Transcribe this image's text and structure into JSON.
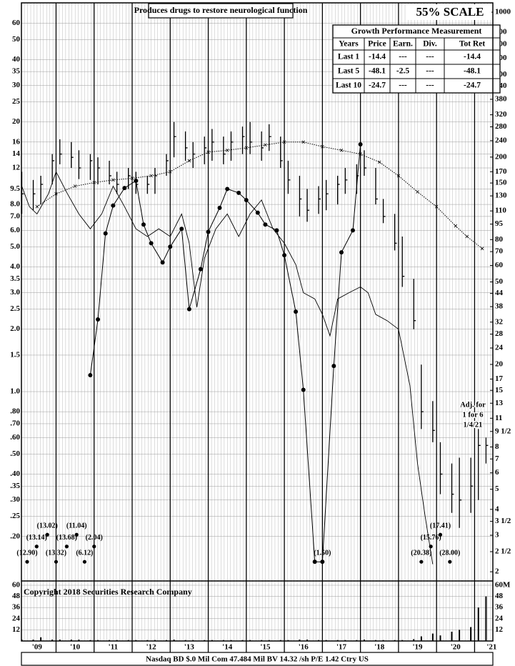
{
  "chart_data": {
    "type": "ohlc",
    "title": "Produces drugs to restore neurological function",
    "subtitle": "55% SCALE",
    "log": true,
    "xlim": [
      2009.09,
      2021.48
    ],
    "ylim": [
      0.123,
      75.1
    ],
    "y2lim": [
      1.82,
      1109
    ],
    "yticks": [
      60,
      50,
      40,
      35,
      30,
      25,
      20,
      16,
      14,
      12,
      9.5,
      {
        "value": 8,
        "label": "8.0"
      },
      {
        "value": 7,
        "label": "7.0"
      },
      {
        "value": 6,
        "label": "6.0"
      },
      {
        "value": 5,
        "label": "5.0"
      },
      {
        "value": 4,
        "label": "4.0"
      },
      3.5,
      {
        "value": 3,
        "label": "3.0"
      },
      2.5,
      {
        "value": 2,
        "label": "2.0"
      },
      1.5,
      {
        "value": 1,
        "label": "1.0"
      },
      {
        "value": 0.8,
        "label": ".80"
      },
      {
        "value": 0.7,
        "label": ".70"
      },
      {
        "value": 0.6,
        "label": ".60"
      },
      {
        "value": 0.5,
        "label": ".50"
      },
      {
        "value": 0.4,
        "label": ".40"
      },
      {
        "value": 0.35,
        "label": ".35"
      },
      {
        "value": 0.3,
        "label": ".30"
      },
      {
        "value": 0.25,
        "label": ".25"
      },
      {
        "value": 0.2,
        "label": ".20"
      }
    ],
    "y2ticks": [
      1000,
      800,
      700,
      600,
      500,
      440,
      380,
      320,
      280,
      240,
      200,
      170,
      150,
      130,
      110,
      95,
      80,
      70,
      60,
      50,
      44,
      38,
      32,
      28,
      24,
      20,
      17,
      15,
      13,
      11,
      {
        "value": 9.5,
        "label": "9 1/2"
      },
      8,
      7,
      6,
      5,
      4,
      {
        "value": 3.5,
        "label": "3 1/2"
      },
      3,
      {
        "value": 2.5,
        "label": "2 1/2"
      },
      2
    ],
    "xticks": [
      {
        "value": 2009.5,
        "label": "'09"
      },
      {
        "value": 2010.5,
        "label": "'10"
      },
      {
        "value": 2011.5,
        "label": "'11"
      },
      {
        "value": 2012.5,
        "label": "'12"
      },
      {
        "value": 2013.5,
        "label": "'13"
      },
      {
        "value": 2014.5,
        "label": "'14"
      },
      {
        "value": 2015.5,
        "label": "'15"
      },
      {
        "value": 2016.5,
        "label": "'16"
      },
      {
        "value": 2017.5,
        "label": "'17"
      },
      {
        "value": 2018.5,
        "label": "'18"
      },
      {
        "value": 2019.5,
        "label": "'19"
      },
      {
        "value": 2020.5,
        "label": "'20"
      },
      {
        "value": 2021.45,
        "label": "'21"
      }
    ],
    "year_lines": [
      2010,
      2011,
      2012,
      2013,
      2014,
      2015,
      2016,
      2017,
      2018,
      2019,
      2020,
      2021
    ],
    "x": [
      2009.1,
      2009.4,
      2009.6,
      2009.9,
      2010.1,
      2010.4,
      2010.6,
      2010.9,
      2011.1,
      2011.4,
      2011.6,
      2011.9,
      2012.1,
      2012.4,
      2012.6,
      2012.9,
      2013.1,
      2013.4,
      2013.6,
      2013.9,
      2014.1,
      2014.4,
      2014.6,
      2014.9,
      2015.1,
      2015.4,
      2015.6,
      2015.9,
      2016.1,
      2016.4,
      2016.6,
      2016.9,
      2017.1,
      2017.4,
      2017.6,
      2017.9,
      2018.1,
      2018.4,
      2018.6,
      2018.9,
      2019.1,
      2019.4,
      2019.6,
      2019.9,
      2020.1,
      2020.4,
      2020.6,
      2020.9,
      2021.1,
      2021.3
    ],
    "high": [
      11.5,
      10.5,
      11,
      14,
      16.5,
      16,
      14.6,
      14,
      13.5,
      13,
      11.5,
      12,
      11.5,
      11,
      12,
      14,
      20,
      18,
      16,
      17,
      18.5,
      17,
      18,
      19,
      20,
      18,
      19.5,
      17,
      13,
      11,
      9.5,
      9.8,
      10.5,
      11,
      12,
      12.5,
      14.6,
      12,
      8.5,
      7.2,
      5.6,
      3.5,
      1.35,
      0.9,
      0.57,
      0.45,
      0.48,
      0.48,
      0.66,
      0.6
    ],
    "low": [
      7.2,
      7.5,
      8,
      10,
      12.5,
      12,
      10.6,
      10.5,
      10,
      10,
      9,
      9.5,
      9,
      9,
      9,
      11,
      13.5,
      13,
      12,
      12.5,
      13,
      12.5,
      13,
      14,
      14,
      13,
      14.5,
      12,
      9,
      7,
      6.6,
      7.2,
      7.5,
      8,
      9,
      9,
      11,
      8,
      6.5,
      4.8,
      3.2,
      2.0,
      0.66,
      0.57,
      0.32,
      0.26,
      0.22,
      0.26,
      0.3,
      0.45
    ],
    "close": [
      9,
      9,
      10,
      13,
      14,
      13.5,
      12,
      13,
      12,
      11,
      10,
      11,
      10,
      10,
      11,
      13,
      17,
      15,
      14,
      15,
      16,
      14,
      16,
      17,
      16,
      15,
      17,
      13,
      10.5,
      8.5,
      7.5,
      8.5,
      9,
      10,
      10.5,
      11,
      12,
      8.5,
      7,
      5.2,
      3.6,
      2.2,
      0.8,
      0.65,
      0.4,
      0.32,
      0.3,
      0.35,
      0.55,
      0.55
    ],
    "moving_average": {
      "x": [
        2009.5,
        2010,
        2010.5,
        2011,
        2011.5,
        2012,
        2012.5,
        2013,
        2013.5,
        2014,
        2014.5,
        2015,
        2015.5,
        2016,
        2016.5,
        2017,
        2017.5,
        2018,
        2018.5,
        2019,
        2019.5,
        2020,
        2020.5,
        2020.8,
        2021.2
      ],
      "values": [
        7.8,
        9.0,
        9.8,
        10.2,
        10.5,
        10.7,
        11.0,
        11.5,
        13,
        14.3,
        14.6,
        15,
        15.5,
        16,
        16,
        15.2,
        14.6,
        14,
        12.8,
        11,
        9.2,
        7.8,
        6.3,
        5.6,
        4.9
      ]
    },
    "relative_strength": {
      "x": [
        2009.1,
        2009.3,
        2009.5,
        2009.8,
        2010.0,
        2010.3,
        2010.6,
        2010.9,
        2011.2,
        2011.5,
        2011.8,
        2012.1,
        2012.4,
        2012.7,
        2013.0,
        2013.3,
        2013.5,
        2013.7,
        2013.9,
        2014.2,
        2014.5,
        2014.8,
        2015.1,
        2015.4,
        2015.7,
        2016.0,
        2016.3,
        2016.5,
        2016.8,
        2017.0,
        2017.2,
        2017.4,
        2017.7,
        2018.0,
        2018.2,
        2018.4,
        2018.7,
        2019.0,
        2019.3,
        2019.5,
        2019.7,
        2019.9
      ],
      "values": [
        9.8,
        7.8,
        7.2,
        9,
        11.5,
        9,
        7.2,
        6.1,
        7.2,
        9.8,
        7.8,
        6.1,
        5.6,
        6.1,
        5.6,
        7.2,
        5.2,
        2.55,
        4.4,
        6.1,
        7.2,
        5.6,
        7.2,
        8.4,
        6.1,
        5.2,
        4.1,
        3.0,
        2.8,
        2.36,
        1.86,
        2.8,
        3.0,
        3.2,
        3.0,
        2.36,
        2.2,
        2.0,
        1.07,
        0.45,
        0.25,
        0.147
      ]
    },
    "earnings": {
      "x": [
        2010.9,
        2011.1,
        2011.3,
        2011.5,
        2011.8,
        2012.1,
        2012.3,
        2012.5,
        2012.8,
        2013.0,
        2013.3,
        2013.5,
        2013.8,
        2014.0,
        2014.3,
        2014.5,
        2014.8,
        2015.0,
        2015.3,
        2015.5,
        2015.8,
        2016.0,
        2016.3,
        2016.5,
        2016.8,
        2017.0,
        2017.3,
        2017.5,
        2017.8,
        2018.0
      ],
      "values": [
        1.2,
        2.23,
        5.8,
        7.9,
        9.6,
        10.4,
        6.4,
        5.2,
        4.2,
        5.0,
        6.1,
        2.5,
        3.9,
        5.9,
        7.7,
        9.5,
        9.1,
        8.4,
        7.3,
        6.4,
        6.0,
        4.55,
        2.43,
        1.02,
        0.151,
        0.151,
        1.33,
        4.7,
        6.0,
        15.6
      ]
    },
    "deficits": [
      {
        "x": 2009.24,
        "y": 0.151,
        "label": "(12.90)"
      },
      {
        "x": 2009.49,
        "y": 0.179,
        "label": "(13.14)"
      },
      {
        "x": 2009.77,
        "y": 0.204,
        "label": "(13.02)"
      },
      {
        "x": 2010.0,
        "y": 0.151,
        "label": "(13.32)"
      },
      {
        "x": 2010.28,
        "y": 0.179,
        "label": "(13.68)"
      },
      {
        "x": 2010.54,
        "y": 0.204,
        "label": "(11.04)"
      },
      {
        "x": 2010.75,
        "y": 0.151,
        "label": "(6.12)"
      },
      {
        "x": 2011.0,
        "y": 0.179,
        "label": "(2.04)"
      },
      {
        "x": 2017.0,
        "y": 0.151,
        "label": "(1.50)"
      },
      {
        "x": 2019.6,
        "y": 0.151,
        "label": "(20.38)"
      },
      {
        "x": 2019.85,
        "y": 0.179,
        "label": "(15.76)"
      },
      {
        "x": 2020.1,
        "y": 0.204,
        "label": "(17.41)"
      },
      {
        "x": 2020.35,
        "y": 0.151,
        "label": "(28.00)"
      }
    ],
    "note": [
      "Adj. for",
      "1 for 6",
      "1/4/21"
    ],
    "volume": {
      "ylim": [
        0,
        64.6
      ],
      "yticks": [
        12,
        24,
        36,
        48,
        60
      ],
      "y2ticks": [
        12,
        24,
        36,
        48,
        {
          "value": 60,
          "label": "60M"
        }
      ],
      "values": [
        1.5,
        1.5,
        4,
        1.5,
        1.5,
        1.5,
        1.5,
        1,
        1,
        1,
        1,
        1,
        1,
        1,
        1,
        1,
        1.5,
        1,
        1,
        1,
        1,
        1,
        1,
        1,
        1,
        1,
        1,
        1,
        1,
        1.5,
        1.5,
        1,
        1,
        1,
        1,
        1,
        1.5,
        1,
        1,
        1,
        1,
        2,
        5,
        8,
        6,
        10,
        12,
        15,
        36,
        48
      ]
    },
    "copyright": "Copyright 2018 Securities Research Company",
    "footer": "Nasdaq BD  $.0 Mil Com 47.484 Mil BV 14.32 /sh  P/E 1.42 Ctry US",
    "performance_table": {
      "title": "Growth Performance Measurement",
      "header": [
        "Years",
        "Price",
        "Earn.",
        "Div.",
        "Tot Ret"
      ],
      "rows": [
        [
          "Last 1",
          "-14.4",
          "---",
          "---",
          "-14.4"
        ],
        [
          "Last 5",
          "-48.1",
          "-2.5",
          "---",
          "-48.1"
        ],
        [
          "Last 10",
          "-24.7",
          "---",
          "---",
          "-24.7"
        ]
      ]
    }
  }
}
